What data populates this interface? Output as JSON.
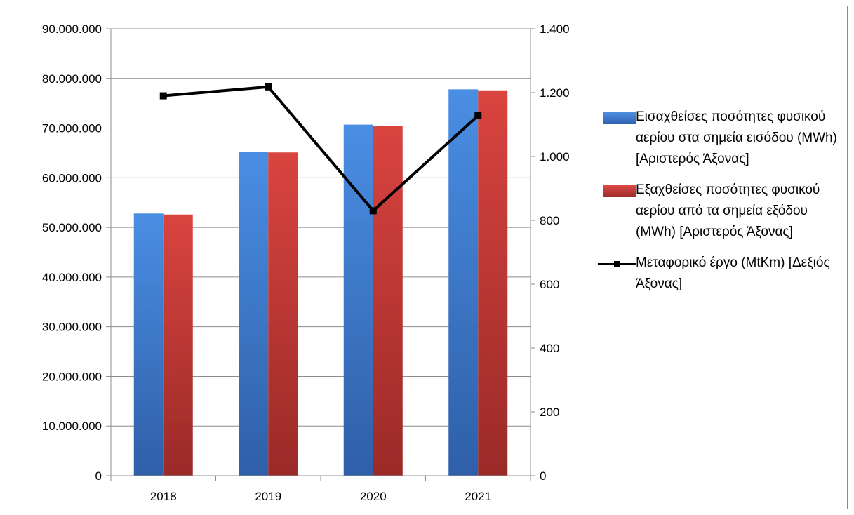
{
  "chart_data": {
    "type": "bar",
    "categories": [
      "2018",
      "2019",
      "2020",
      "2021"
    ],
    "series": [
      {
        "name": "Εισαχθείσες ποσότητες φυσικού αερίου στα σημεία εισόδου (MWh) [Αριστερός Άξονας]",
        "type": "bar",
        "axis": "left",
        "color": "#3f7fd4",
        "values": [
          52800000,
          65200000,
          70700000,
          77800000
        ]
      },
      {
        "name": "Εξαχθείσες ποσότητες φυσικού αερίου από τα σημεία εξόδου (MWh) [Αριστερός Άξονας]",
        "type": "bar",
        "axis": "left",
        "color": "#c93a37",
        "values": [
          52600000,
          65100000,
          70500000,
          77600000
        ]
      },
      {
        "name": "Μεταφορικό έργο (MtKm) [Δεξιός Άξονας]",
        "type": "line",
        "axis": "right",
        "color": "#000000",
        "values": [
          1190,
          1218,
          830,
          1128
        ]
      }
    ],
    "y_left": {
      "range": [
        0,
        90000000
      ],
      "ticks": [
        0,
        10000000,
        20000000,
        30000000,
        40000000,
        50000000,
        60000000,
        70000000,
        80000000,
        90000000
      ],
      "tick_labels": [
        "0",
        "10.000.000",
        "20.000.000",
        "30.000.000",
        "40.000.000",
        "50.000.000",
        "60.000.000",
        "70.000.000",
        "80.000.000",
        "90.000.000"
      ]
    },
    "y_right": {
      "range": [
        0,
        1400
      ],
      "ticks": [
        0,
        200,
        400,
        600,
        800,
        1000,
        1200,
        1400
      ],
      "tick_labels": [
        "0",
        "200",
        "400",
        "600",
        "800",
        "1.000",
        "1.200",
        "1.400"
      ]
    },
    "title": "",
    "xlabel": "",
    "ylabel": "",
    "grid": true,
    "legend": "right"
  }
}
